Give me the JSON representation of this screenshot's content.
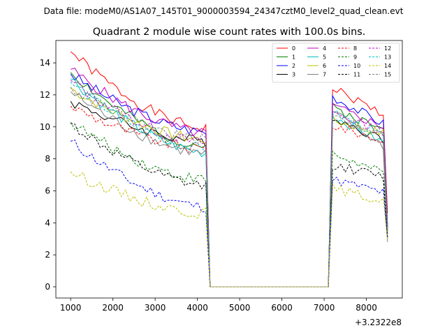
{
  "header": {
    "file_label": "Data file: modeM0/AS1A07_145T01_9000003594_24347cztM0_level2_quad_clean.evt"
  },
  "chart_data": {
    "type": "line",
    "title": "Quadrant 2 module wise count rates with 100.0s bins.",
    "xlabel": "",
    "ylabel": "",
    "x_offset_label": "+3.2322e8",
    "xlim": [
      650,
      8850
    ],
    "ylim": [
      -0.7,
      15.4
    ],
    "xticks": [
      1000,
      2000,
      3000,
      4000,
      5000,
      6000,
      7000,
      8000
    ],
    "yticks": [
      0,
      2,
      4,
      6,
      8,
      10,
      12,
      14
    ],
    "legend_position": "top-right",
    "segment1": {
      "start": 1000,
      "step": 100,
      "count": 33
    },
    "gap": {
      "x_drop_end": 4300,
      "x_gap_end": 7100,
      "value": 0
    },
    "segment2": {
      "start": 7200,
      "step": 100,
      "count": 13
    },
    "series": [
      {
        "name": "0",
        "color": "#ff0000",
        "dash": "solid",
        "start1": 14.7,
        "end1": 9.9,
        "start2": 12.4,
        "end2": 10.8,
        "final": 4.6
      },
      {
        "name": "1",
        "color": "#008000",
        "dash": "solid",
        "start1": 13.4,
        "end1": 8.8,
        "start2": 11.2,
        "end2": 9.8,
        "final": 3.7
      },
      {
        "name": "2",
        "color": "#0000ff",
        "dash": "solid",
        "start1": 13.3,
        "end1": 9.7,
        "start2": 11.9,
        "end2": 10.2,
        "final": 3.9
      },
      {
        "name": "3",
        "color": "#000000",
        "dash": "solid",
        "start1": 11.6,
        "end1": 9.1,
        "start2": 10.6,
        "end2": 9.2,
        "final": 3.5
      },
      {
        "name": "4",
        "color": "#bf00bf",
        "dash": "solid",
        "start1": 13.6,
        "end1": 9.6,
        "start2": 11.3,
        "end2": 10.0,
        "final": 3.8
      },
      {
        "name": "5",
        "color": "#00bfbf",
        "dash": "solid",
        "start1": 13.0,
        "end1": 8.4,
        "start2": 10.7,
        "end2": 9.0,
        "final": 3.3
      },
      {
        "name": "6",
        "color": "#bfbf00",
        "dash": "solid",
        "start1": 12.4,
        "end1": 9.2,
        "start2": 10.4,
        "end2": 9.6,
        "final": 3.4
      },
      {
        "name": "7",
        "color": "#808080",
        "dash": "solid",
        "start1": 12.2,
        "end1": 8.3,
        "start2": 10.9,
        "end2": 8.8,
        "final": 2.8
      },
      {
        "name": "8",
        "color": "#ff0000",
        "dash": "dashed",
        "start1": 11.3,
        "end1": 8.6,
        "start2": 10.1,
        "end2": 9.1,
        "final": 3.6
      },
      {
        "name": "9",
        "color": "#008000",
        "dash": "dashed",
        "start1": 10.3,
        "end1": 6.7,
        "start2": 8.3,
        "end2": 7.1,
        "final": 3.1
      },
      {
        "name": "10",
        "color": "#0000ff",
        "dash": "dashed",
        "start1": 9.1,
        "end1": 5.0,
        "start2": 6.7,
        "end2": 5.9,
        "final": 3.0
      },
      {
        "name": "11",
        "color": "#000000",
        "dash": "dashed",
        "start1": 10.2,
        "end1": 6.3,
        "start2": 7.6,
        "end2": 6.9,
        "final": 3.1
      },
      {
        "name": "12",
        "color": "#bf00bf",
        "dash": "dashed",
        "start1": 12.9,
        "end1": 9.0,
        "start2": 10.9,
        "end2": 9.7,
        "final": 3.7
      },
      {
        "name": "13",
        "color": "#00bfbf",
        "dash": "dashed",
        "start1": 12.8,
        "end1": 8.6,
        "start2": 10.9,
        "end2": 9.4,
        "final": 3.5
      },
      {
        "name": "14",
        "color": "#bfbf00",
        "dash": "dashed",
        "start1": 7.2,
        "end1": 4.6,
        "start2": 6.2,
        "end2": 5.3,
        "final": 2.9
      },
      {
        "name": "15",
        "color": "#808080",
        "dash": "dashed",
        "start1": 12.5,
        "end1": 9.2,
        "start2": 10.7,
        "end2": 9.6,
        "final": 3.4
      }
    ]
  }
}
